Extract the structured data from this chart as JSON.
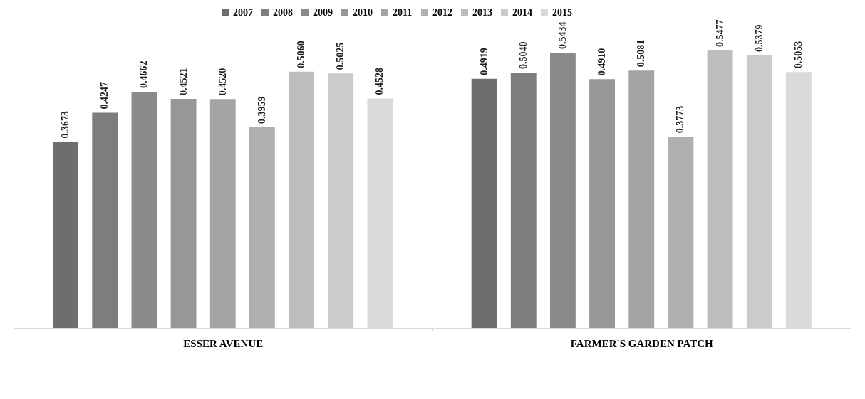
{
  "chart_data": {
    "type": "bar",
    "categories": [
      "ESSER AVENUE",
      "FARMER'S GARDEN PATCH"
    ],
    "series": [
      {
        "name": "2007",
        "color": "#6e6e6e",
        "values": [
          0.3673,
          0.4919
        ],
        "value_labels": [
          "0.3673",
          "0.4919"
        ]
      },
      {
        "name": "2008",
        "color": "#7d7d7d",
        "values": [
          0.4247,
          0.504
        ],
        "value_labels": [
          "0.4247",
          "0.5040"
        ]
      },
      {
        "name": "2009",
        "color": "#8a8a8a",
        "values": [
          0.4662,
          0.5434
        ],
        "value_labels": [
          "0.4662",
          "0.5434"
        ]
      },
      {
        "name": "2010",
        "color": "#979797",
        "values": [
          0.4521,
          0.491
        ],
        "value_labels": [
          "0.4521",
          "0.4910"
        ]
      },
      {
        "name": "2011",
        "color": "#a3a3a3",
        "values": [
          0.452,
          0.5081
        ],
        "value_labels": [
          "0.4520",
          "0.5081"
        ]
      },
      {
        "name": "2012",
        "color": "#b0b0b0",
        "values": [
          0.3959,
          0.3773
        ],
        "value_labels": [
          "0.3959",
          "0.3773"
        ]
      },
      {
        "name": "2013",
        "color": "#bdbdbd",
        "values": [
          0.506,
          0.5477
        ],
        "value_labels": [
          "0.5060",
          "0.5477"
        ]
      },
      {
        "name": "2014",
        "color": "#cbcbcb",
        "values": [
          0.5025,
          0.5379
        ],
        "value_labels": [
          "0.5025",
          "0.5379"
        ]
      },
      {
        "name": "2015",
        "color": "#d9d9d9",
        "values": [
          0.4528,
          0.5053
        ],
        "value_labels": [
          "0.4528",
          "0.5053"
        ]
      }
    ],
    "legend": "top"
  }
}
